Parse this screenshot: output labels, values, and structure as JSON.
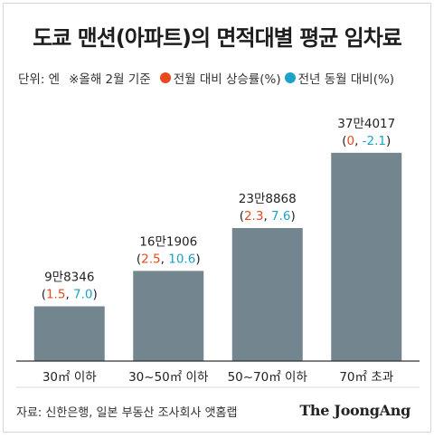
{
  "title": "도쿄 맨션(아파트)의 면적대별 평균 임차료",
  "unit_note": "단위: 엔",
  "basis_note": "※올해 2월 기준",
  "source": "자료: 신한은행, 일본 부동산 조사회사 앳홈랩",
  "brand": "The JoongAng",
  "colors": {
    "bar": "#73858f",
    "monthly": "#e8491d",
    "yearly": "#1aa3c6",
    "baseline": "#333333"
  },
  "chart_data": {
    "type": "bar",
    "categories": [
      "30㎡ 이하",
      "30~50㎡ 이하",
      "50~70㎡ 이하",
      "70㎡ 초과"
    ],
    "values": [
      98346,
      161906,
      238868,
      374017
    ],
    "value_labels": [
      "9만8346",
      "16만1906",
      "23만8868",
      "37만4017"
    ],
    "series": [
      {
        "name": "전월 대비 상승률(%)",
        "values": [
          "1.5",
          "2.5",
          "2.3",
          "0"
        ]
      },
      {
        "name": "전년 동월 대비(%)",
        "values": [
          "7.0",
          "10.6",
          "7.6",
          "-2.1"
        ]
      }
    ],
    "ylim": [
      0,
      390000
    ],
    "grid": false,
    "legend": "top-left"
  }
}
